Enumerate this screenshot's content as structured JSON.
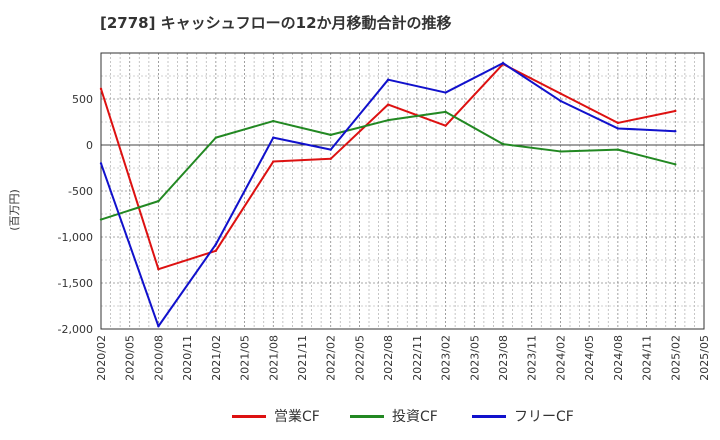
{
  "chart_data": {
    "type": "line",
    "title": "[2778]  キャッシュフローの12か月移動合計の推移",
    "ylabel": "(百万円)",
    "xlabel": "",
    "ylim": [
      -2000,
      1000
    ],
    "yticks": [
      -2000,
      -1500,
      -1000,
      -500,
      0,
      500
    ],
    "ytick_labels": [
      "-2,000",
      "-1,500",
      "-1,000",
      "-500",
      "0",
      "500"
    ],
    "categories": [
      "2020/02",
      "2020/05",
      "2020/08",
      "2020/11",
      "2021/02",
      "2021/05",
      "2021/08",
      "2021/11",
      "2022/02",
      "2022/05",
      "2022/08",
      "2022/11",
      "2023/02",
      "2023/05",
      "2023/08",
      "2023/11",
      "2024/02",
      "2024/05",
      "2024/08",
      "2024/11",
      "2025/02",
      "2025/05"
    ],
    "series": [
      {
        "name": "営業CF",
        "color": "#dd1111",
        "values": [
          610,
          null,
          -1350,
          null,
          -1150,
          null,
          -180,
          null,
          -150,
          null,
          440,
          null,
          210,
          null,
          880,
          null,
          560,
          null,
          240,
          null,
          370,
          null
        ]
      },
      {
        "name": "投資CF",
        "color": "#228822",
        "values": [
          -810,
          null,
          -610,
          null,
          80,
          null,
          260,
          null,
          110,
          null,
          270,
          null,
          360,
          null,
          10,
          null,
          -70,
          null,
          -50,
          null,
          -210,
          null
        ]
      },
      {
        "name": "フリーCF",
        "color": "#1111cc",
        "values": [
          -200,
          null,
          -1970,
          null,
          -1080,
          null,
          80,
          null,
          -50,
          null,
          710,
          null,
          570,
          null,
          890,
          null,
          480,
          null,
          180,
          null,
          150,
          null
        ]
      }
    ],
    "legend_position": "bottom",
    "grid": true
  }
}
